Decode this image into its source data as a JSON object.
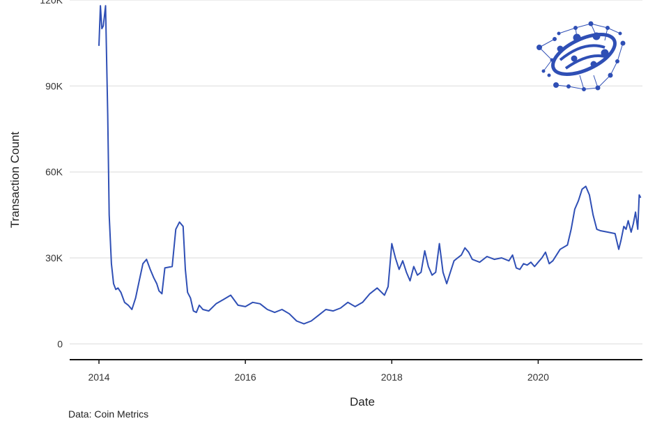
{
  "chart_data": {
    "type": "line",
    "title": "",
    "xlabel": "Date",
    "ylabel": "Transaction Count",
    "caption": "Data: Coin Metrics",
    "x_ticks": [
      {
        "label": "2014",
        "value": 2014
      },
      {
        "label": "2016",
        "value": 2016
      },
      {
        "label": "2018",
        "value": 2018
      },
      {
        "label": "2020",
        "value": 2020
      }
    ],
    "y_ticks": [
      {
        "label": "0",
        "value": 0
      },
      {
        "label": "30K",
        "value": 30000
      },
      {
        "label": "60K",
        "value": 60000
      },
      {
        "label": "90K",
        "value": 90000
      },
      {
        "label": "120K",
        "value": 120000
      }
    ],
    "xlim": [
      2013.6,
      2021.5
    ],
    "ylim": [
      -5500,
      120000
    ],
    "grid": "horizontal",
    "colors": {
      "line": "#2f4fb5",
      "grid": "#e6e6e6",
      "axis": "#111111",
      "logo": "#2f4fb5"
    },
    "logo_icon": "network-globe-logo",
    "series": [
      {
        "color": "#2f4fb5",
        "x": [
          2014.0,
          2014.02,
          2014.04,
          2014.06,
          2014.09,
          2014.12,
          2014.14,
          2014.17,
          2014.2,
          2014.23,
          2014.26,
          2014.3,
          2014.35,
          2014.4,
          2014.45,
          2014.5,
          2014.55,
          2014.6,
          2014.65,
          2014.7,
          2014.75,
          2014.79,
          2014.82,
          2014.86,
          2014.9,
          2015.0,
          2015.05,
          2015.1,
          2015.15,
          2015.18,
          2015.21,
          2015.25,
          2015.29,
          2015.33,
          2015.37,
          2015.42,
          2015.5,
          2015.6,
          2015.7,
          2015.8,
          2015.9,
          2016.0,
          2016.1,
          2016.2,
          2016.3,
          2016.4,
          2016.5,
          2016.6,
          2016.7,
          2016.8,
          2016.9,
          2017.0,
          2017.1,
          2017.2,
          2017.3,
          2017.4,
          2017.5,
          2017.6,
          2017.7,
          2017.8,
          2017.9,
          2017.95,
          2018.0,
          2018.05,
          2018.1,
          2018.15,
          2018.2,
          2018.25,
          2018.3,
          2018.35,
          2018.4,
          2018.45,
          2018.5,
          2018.55,
          2018.6,
          2018.65,
          2018.7,
          2018.75,
          2018.8,
          2018.85,
          2018.9,
          2018.95,
          2019.0,
          2019.05,
          2019.1,
          2019.2,
          2019.3,
          2019.4,
          2019.5,
          2019.6,
          2019.65,
          2019.7,
          2019.75,
          2019.8,
          2019.85,
          2019.9,
          2019.95,
          2020.0,
          2020.05,
          2020.1,
          2020.15,
          2020.2,
          2020.3,
          2020.4,
          2020.45,
          2020.5,
          2020.55,
          2020.6,
          2020.65,
          2020.7,
          2020.75,
          2020.8,
          2020.85,
          2020.95,
          2021.05,
          2021.1,
          2021.13,
          2021.17,
          2021.2,
          2021.23,
          2021.27,
          2021.3,
          2021.33,
          2021.36,
          2021.38,
          2021.4
        ],
        "y": [
          104000,
          118000,
          110000,
          111000,
          118000,
          80000,
          45000,
          28000,
          21000,
          19000,
          19500,
          18000,
          14500,
          13500,
          12000,
          16000,
          22000,
          28000,
          29500,
          26000,
          23000,
          21000,
          18500,
          17500,
          26500,
          27000,
          40000,
          42500,
          41000,
          26000,
          18000,
          16000,
          11500,
          11000,
          13500,
          12000,
          11500,
          14000,
          15500,
          17000,
          13500,
          13000,
          14500,
          14000,
          12000,
          11000,
          12000,
          10500,
          8000,
          7000,
          8000,
          10000,
          12000,
          11500,
          12500,
          14500,
          13000,
          14500,
          17500,
          19500,
          17000,
          20000,
          35000,
          30000,
          26000,
          29000,
          25000,
          22000,
          27000,
          24000,
          25000,
          32500,
          27000,
          24000,
          25000,
          35000,
          25000,
          21000,
          25000,
          29000,
          30000,
          31000,
          33500,
          32000,
          29500,
          28500,
          30500,
          29500,
          30000,
          29000,
          31000,
          26500,
          26000,
          28000,
          27500,
          28500,
          27000,
          28500,
          30000,
          32000,
          28000,
          29000,
          33000,
          34500,
          40000,
          47000,
          50000,
          54000,
          55000,
          52000,
          45000,
          40000,
          39500,
          39000,
          38500,
          33000,
          36000,
          41000,
          40000,
          43000,
          39000,
          42000,
          46000,
          40000,
          52000,
          51000
        ]
      }
    ]
  }
}
